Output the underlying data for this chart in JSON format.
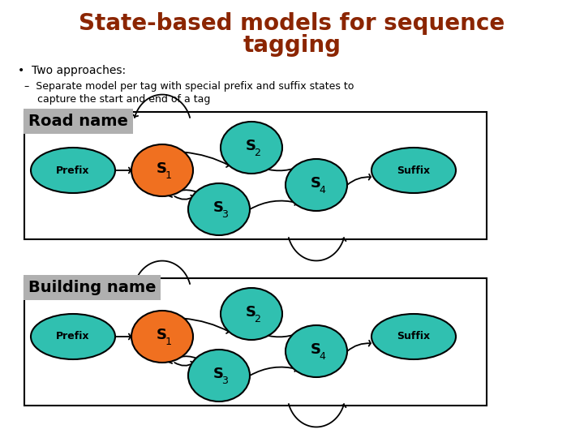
{
  "title_line1": "State-based models for sequence",
  "title_line2": "tagging",
  "title_color": "#8B2500",
  "title_fontsize": 20,
  "bullet1": "•  Two approaches:",
  "sub_bullet1": "–  Separate model per tag with special prefix and suffix states to",
  "sub_bullet2": "    capture the start and end of a tag",
  "background_color": "#ffffff",
  "node_color_cyan": "#30C0B0",
  "node_color_orange": "#F07020",
  "label_bg_color": "#B0B0B0",
  "diagram1_label": "Road name",
  "diagram2_label": "Building name",
  "text_fontsize": 10,
  "sub_fontsize": 9
}
